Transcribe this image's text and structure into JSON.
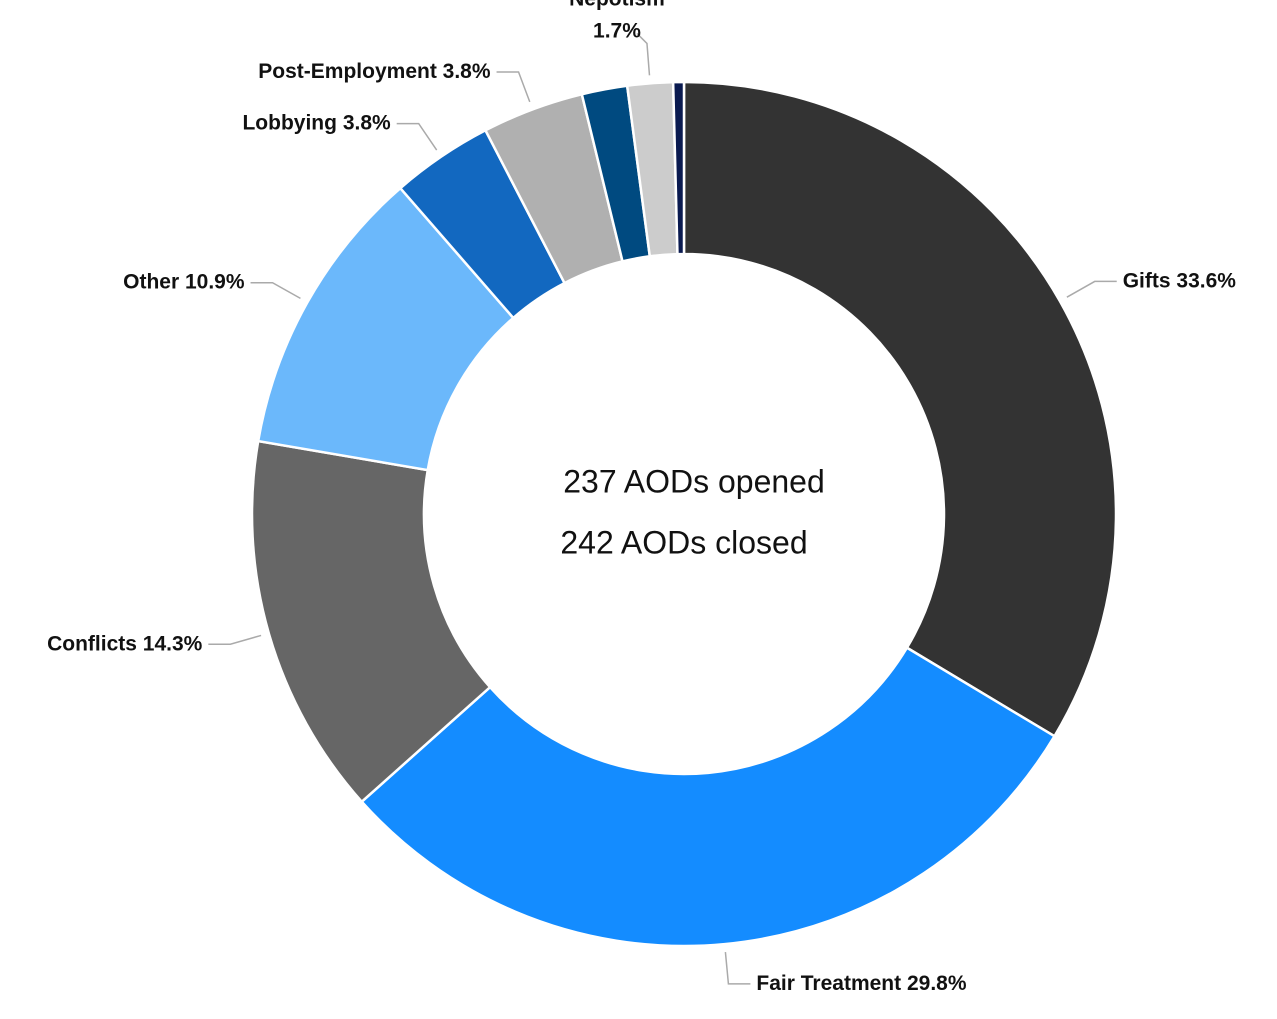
{
  "chart_data": {
    "type": "donut",
    "categories": [
      "Gifts",
      "Fair Treatment",
      "Conflicts",
      "Other",
      "Lobbying",
      "Post-Employment",
      null,
      "Nepotism",
      null
    ],
    "values": [
      33.6,
      29.8,
      14.3,
      10.9,
      3.8,
      3.8,
      1.7,
      1.7,
      0.4
    ],
    "value_labels": [
      "33.6%",
      "29.8%",
      "14.3%",
      "10.9%",
      "3.8%",
      "3.8%",
      null,
      "1.7%",
      null
    ],
    "colors": [
      "#333333",
      "#148cff",
      "#666666",
      "#6bb8fb",
      "#1268c0",
      "#b0b0b0",
      "#004a80",
      "#cccccc",
      "#0a1a50"
    ],
    "center_text": [
      "237  AODs opened",
      "242  AODs closed"
    ]
  }
}
